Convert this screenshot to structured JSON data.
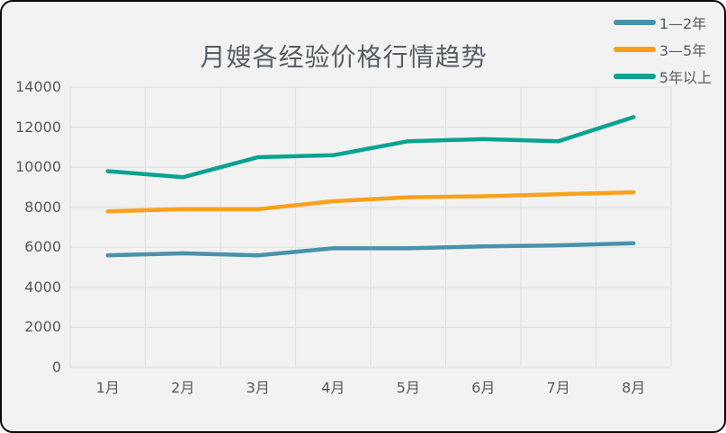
{
  "chart_data": {
    "type": "line",
    "title": "月嫂各经验价格行情趋势",
    "categories": [
      "1月",
      "2月",
      "3月",
      "4月",
      "5月",
      "6月",
      "7月",
      "8月"
    ],
    "series": [
      {
        "name": "1—2年",
        "color": "#4a92ab",
        "values": [
          5600,
          5700,
          5600,
          5950,
          5950,
          6050,
          6100,
          6200
        ]
      },
      {
        "name": "3—5年",
        "color": "#f9a11c",
        "values": [
          7800,
          7900,
          7900,
          8300,
          8500,
          8550,
          8650,
          8750
        ]
      },
      {
        "name": "5年以上",
        "color": "#0aa292",
        "values": [
          9800,
          9500,
          10500,
          10600,
          11300,
          11400,
          11300,
          12500
        ]
      }
    ],
    "xlabel": "",
    "ylabel": "",
    "ylim": [
      0,
      14000
    ],
    "yticks": [
      0,
      2000,
      4000,
      6000,
      8000,
      10000,
      12000,
      14000
    ],
    "grid": true,
    "legend_position": "top-right",
    "background_color": "#f2f2f2",
    "gridline_color": "#e2e2e2"
  }
}
